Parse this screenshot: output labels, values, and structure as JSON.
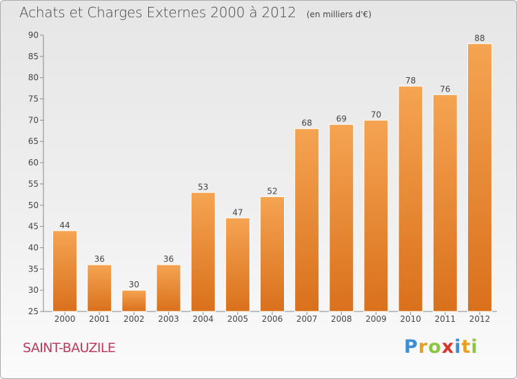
{
  "title": "Achats et Charges Externes 2000 à 2012",
  "unit": "(en milliers d'€)",
  "commune": "SAINT-BAUZILE",
  "logo": "Proxiti",
  "colors": {
    "bar_top": "#f5a452",
    "bar_bottom": "#d9701c",
    "text": "#444444",
    "commune": "#c0395a"
  },
  "chart_data": {
    "type": "bar",
    "title": "Achats et Charges Externes 2000 à 2012",
    "subtitle": "(en milliers d'€)",
    "categories": [
      "2000",
      "2001",
      "2002",
      "2003",
      "2004",
      "2005",
      "2006",
      "2007",
      "2008",
      "2009",
      "2010",
      "2011",
      "2012"
    ],
    "values": [
      44,
      36,
      30,
      36,
      53,
      47,
      52,
      68,
      69,
      70,
      78,
      76,
      88
    ],
    "ylim": [
      25,
      90
    ],
    "yticks": [
      25,
      30,
      35,
      40,
      45,
      50,
      55,
      60,
      65,
      70,
      75,
      80,
      85,
      90
    ],
    "grid": false,
    "legend": "none"
  }
}
